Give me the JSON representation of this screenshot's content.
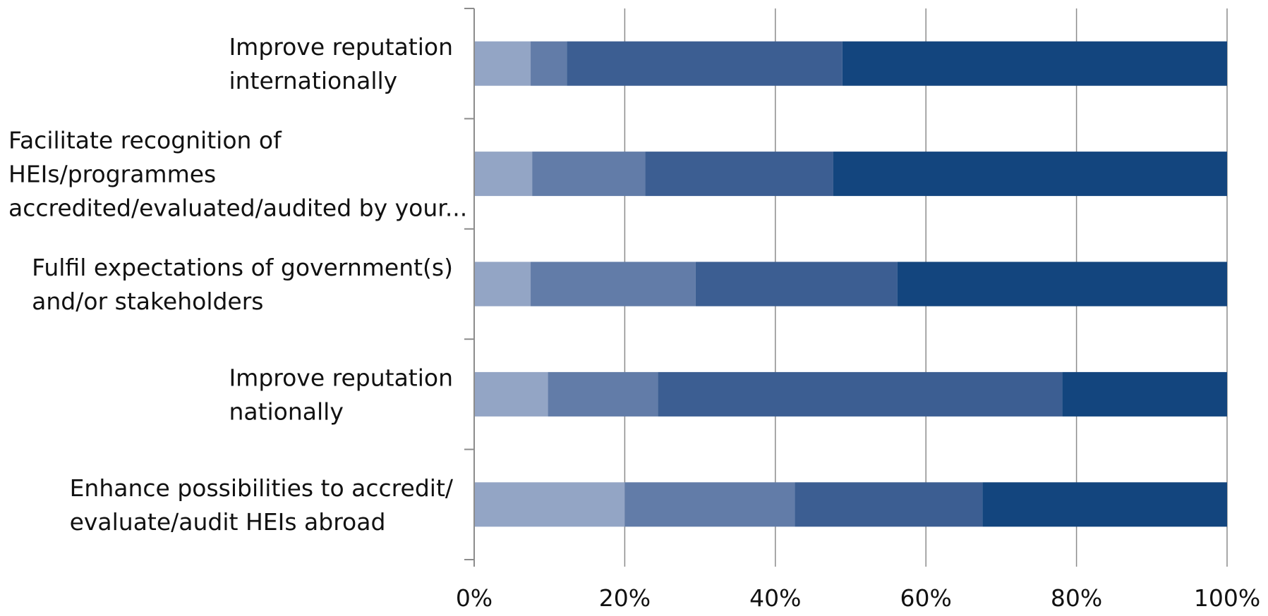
{
  "chart_data": {
    "type": "bar",
    "orientation": "horizontal",
    "stacked": true,
    "percent": true,
    "title": "",
    "xlabel": "",
    "ylabel": "",
    "xlim": [
      0,
      100
    ],
    "x_ticks": [
      "0%",
      "20%",
      "40%",
      "60%",
      "80%",
      "100%"
    ],
    "grid": true,
    "legend": "none",
    "categories": [
      [
        "Improve reputation",
        "internationally"
      ],
      [
        "Facilitate recognition of",
        "HEIs/programmes",
        "accredited/evaluated/audited by your..."
      ],
      [
        "Fulfil expectations of government(s)",
        "and/or stakeholders"
      ],
      [
        "Improve reputation",
        "nationally"
      ],
      [
        "Enhance possibilities to accredit/",
        "evaluate/audit HEIs abroad"
      ]
    ],
    "series": [
      {
        "color": "#93a5c5",
        "values": [
          7.5,
          7.7,
          7.5,
          9.8,
          20.0
        ]
      },
      {
        "color": "#627ca8",
        "values": [
          4.8,
          15.0,
          21.9,
          14.6,
          22.6
        ]
      },
      {
        "color": "#3c5e92",
        "values": [
          36.6,
          25.0,
          26.8,
          53.7,
          24.9
        ]
      },
      {
        "color": "#13457e",
        "values": [
          51.1,
          52.3,
          43.8,
          21.9,
          32.5
        ]
      }
    ]
  }
}
